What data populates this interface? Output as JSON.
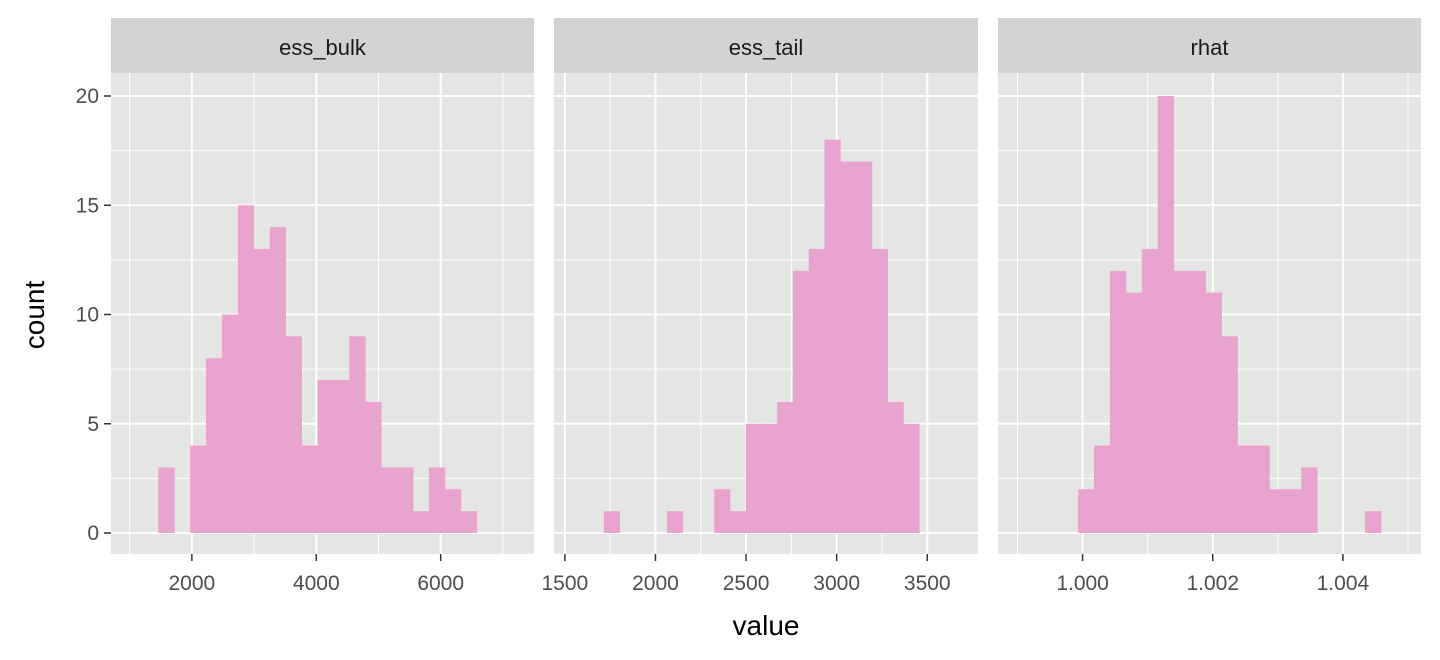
{
  "chart_data": {
    "type": "bar",
    "subtype": "faceted-histogram",
    "xlabel": "value",
    "ylabel": "count",
    "ylim": [
      -1,
      22
    ],
    "y_ticks": [
      0,
      5,
      10,
      15,
      20
    ],
    "y_tick_labels": [
      "0",
      "5",
      "10",
      "15",
      "20"
    ],
    "grid": true,
    "legend": "none",
    "colors": {
      "bar": "#e8a3cf",
      "panel_background": "#e5e5e5",
      "grid": "#ffffff",
      "strip_background": "#d3d3d3",
      "tick_text": "#4d4d4d"
    },
    "facets": [
      {
        "name": "ess_bulk",
        "xlim": [
          700,
          7500
        ],
        "x_ticks": [
          2000,
          4000,
          6000
        ],
        "x_tick_labels": [
          "2000",
          "4000",
          "6000"
        ],
        "x_minor_ticks": [
          1000,
          3000,
          5000,
          7000
        ],
        "bin_start": 1460,
        "bin_width": 256,
        "counts": [
          3,
          0,
          4,
          8,
          10,
          15,
          13,
          14,
          9,
          4,
          7,
          7,
          9,
          6,
          3,
          3,
          1,
          3,
          2,
          1
        ]
      },
      {
        "name": "ess_tail",
        "xlim": [
          1440,
          3780
        ],
        "x_ticks": [
          1500,
          2000,
          2500,
          3000,
          3500
        ],
        "x_tick_labels": [
          "1500",
          "2000",
          "2500",
          "3000",
          "3500"
        ],
        "x_minor_ticks": [
          1750,
          2250,
          2750,
          3250
        ],
        "bin_start": 1715,
        "bin_width": 87,
        "counts": [
          1,
          0,
          0,
          0,
          1,
          0,
          0,
          2,
          1,
          5,
          5,
          6,
          12,
          13,
          18,
          17,
          17,
          13,
          6,
          5
        ]
      },
      {
        "name": "rhat",
        "xlim": [
          0.9987,
          1.0052
        ],
        "x_ticks": [
          1.0,
          1.002,
          1.004
        ],
        "x_tick_labels": [
          "1.000",
          "1.002",
          "1.004"
        ],
        "x_minor_ticks": [
          0.999,
          1.001,
          1.003,
          1.005
        ],
        "bin_start": 0.99993,
        "bin_width": 0.000245,
        "counts": [
          2,
          4,
          12,
          11,
          13,
          20,
          12,
          12,
          11,
          9,
          4,
          4,
          2,
          2,
          3,
          0,
          0,
          0,
          1
        ]
      }
    ]
  }
}
